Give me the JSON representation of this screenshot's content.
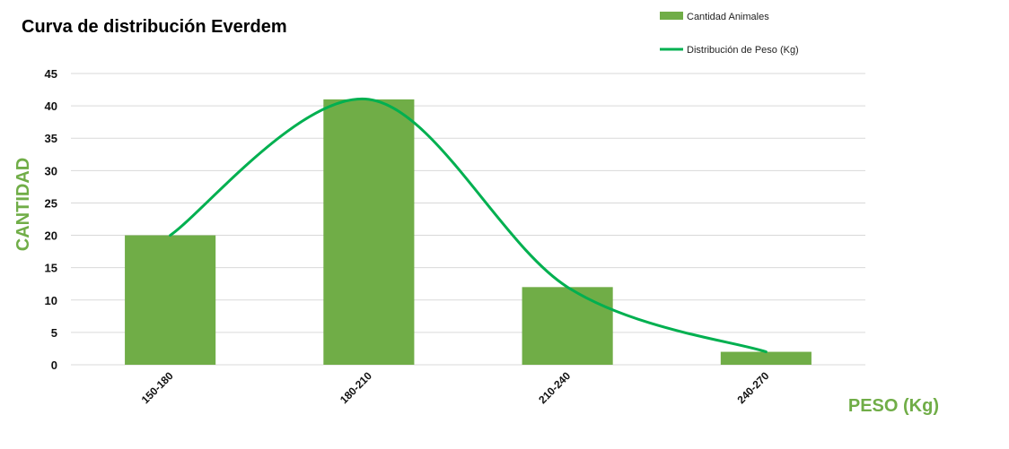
{
  "chart_data": {
    "type": "bar",
    "title": "Curva de distribución Everdem",
    "xlabel": "PESO (Kg)",
    "ylabel": "CANTIDAD",
    "categories": [
      "150-180",
      "180-210",
      "210-240",
      "240-270"
    ],
    "series": [
      {
        "name": "Cantidad Animales",
        "kind": "bar",
        "values": [
          20,
          41,
          12,
          2
        ],
        "color": "#70ad47"
      },
      {
        "name": "Distribución de Peso (Kg)",
        "kind": "smooth-line",
        "values": [
          20,
          41,
          12,
          2
        ],
        "color": "#00b050"
      }
    ],
    "ylim": [
      0,
      45
    ],
    "yticks": [
      0,
      5,
      10,
      15,
      20,
      25,
      30,
      35,
      40,
      45
    ],
    "grid": true,
    "legend": "top-right",
    "axis_title_color": "#70ad47"
  }
}
